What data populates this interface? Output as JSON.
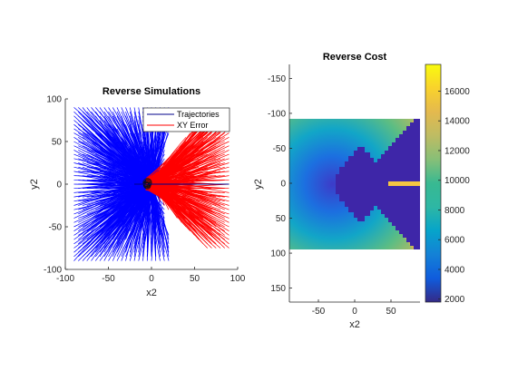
{
  "chart_data": [
    {
      "type": "line",
      "title": "Reverse Simulations",
      "xlabel": "x2",
      "ylabel": "y2",
      "xlim": [
        -100,
        100
      ],
      "ylim": [
        -100,
        100
      ],
      "xticks": [
        -100,
        -50,
        0,
        50,
        100
      ],
      "yticks": [
        100,
        50,
        0,
        -50,
        -100
      ],
      "legend": {
        "placement": "top-right",
        "entries": [
          {
            "name": "Trajectories",
            "color": "#00008b"
          },
          {
            "name": "XY Error",
            "color": "#ff0000"
          }
        ]
      },
      "series": [
        {
          "name": "Trajectories",
          "color": "#0000ff",
          "description_extent": {
            "x": [
              -90,
              20
            ],
            "y": [
              -90,
              90
            ]
          }
        },
        {
          "name": "XY Error",
          "color": "#ff0000",
          "description_extent": {
            "x": [
              0,
              90
            ],
            "y": [
              -75,
              85
            ]
          }
        }
      ]
    },
    {
      "type": "heatmap",
      "title": "Reverse Cost",
      "xlabel": "x2",
      "ylabel": "y2",
      "xlim": [
        -90,
        90
      ],
      "ylim": [
        -170,
        170
      ],
      "y_reversed": true,
      "xticks": [
        -50,
        0,
        50
      ],
      "yticks": [
        -150,
        -100,
        -50,
        0,
        50,
        100,
        150
      ],
      "colorbar": {
        "range": [
          1800,
          17800
        ],
        "ticks": [
          2000,
          4000,
          6000,
          8000,
          10000,
          12000,
          14000,
          16000
        ],
        "colormap": "parula"
      },
      "data_extent": {
        "x": [
          -90,
          90
        ],
        "y": [
          -90,
          90
        ]
      }
    }
  ],
  "colors": {
    "trajectories": "#0000ff",
    "xy_error": "#ff0000",
    "axis": "#262626"
  }
}
